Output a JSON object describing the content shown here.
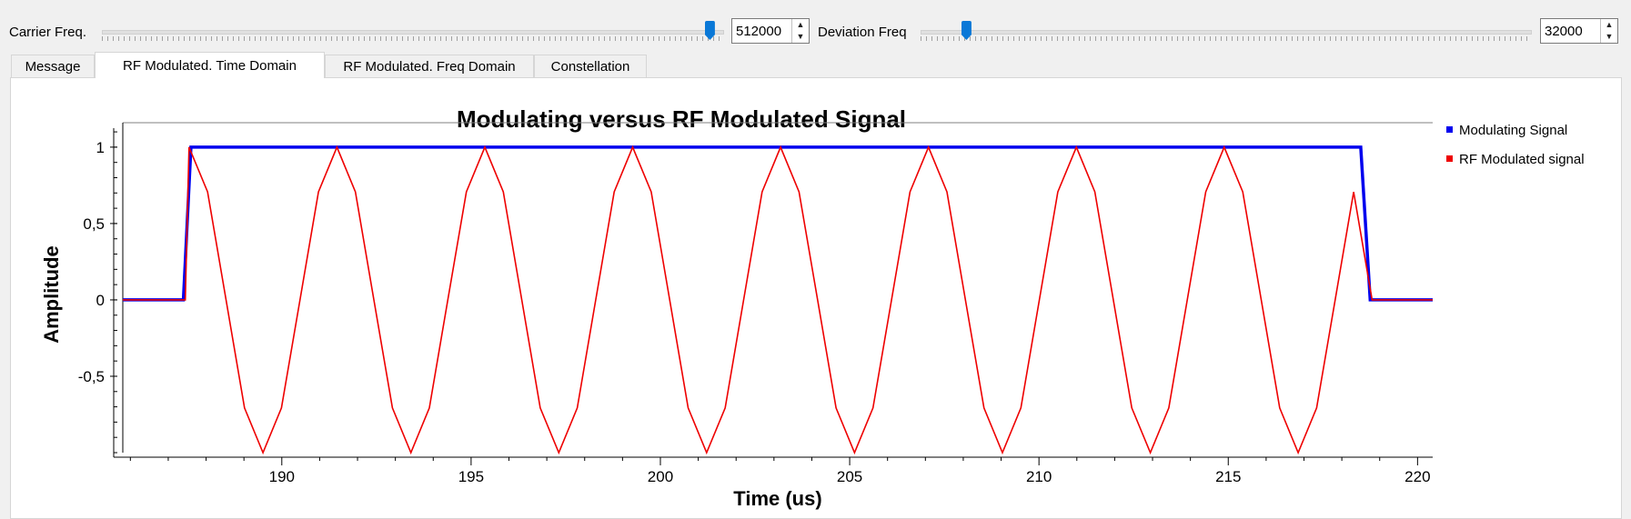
{
  "controls": {
    "carrier": {
      "label": "Carrier Freq.",
      "value": "512000",
      "slider_fraction": 0.985
    },
    "deviation": {
      "label": "Deviation Freq",
      "value": "32000",
      "slider_fraction": 0.068
    }
  },
  "tabs": [
    {
      "label": "Message",
      "active": false
    },
    {
      "label": "RF Modulated. Time Domain",
      "active": true
    },
    {
      "label": "RF Modulated. Freq Domain",
      "active": false
    },
    {
      "label": "Constellation",
      "active": false
    }
  ],
  "colors": {
    "modulating": "#0000ee",
    "rf": "#ee0000",
    "slider_handle": "#0a78d7"
  },
  "chart_data": {
    "type": "line",
    "title": "Modulating versus RF Modulated Signal",
    "xlabel": "Time (us)",
    "ylabel": "Amplitude",
    "xlim": [
      185.8,
      220.4
    ],
    "ylim": [
      -1.0,
      1.16
    ],
    "xticks": [
      190,
      195,
      200,
      205,
      210,
      215,
      220
    ],
    "yticks": [
      1,
      0.5,
      0,
      -0.5
    ],
    "ytick_labels": [
      "1",
      "0,5",
      "0",
      "-0,5"
    ],
    "legend": [
      "Modulating Signal",
      "RF Modulated signal"
    ],
    "legend_position": "right",
    "grid": false,
    "series": [
      {
        "name": "Modulating Signal",
        "color": "#0000ee",
        "x": [
          185.8,
          187.4,
          187.6,
          218.5,
          218.75,
          220.4
        ],
        "y": [
          0,
          0,
          1,
          1,
          0,
          0
        ]
      },
      {
        "name": "RF Modulated signal",
        "color": "#ee0000",
        "sample_period_us": 0.48828125,
        "pulse_start_us": 187.55,
        "pulse_end_us": 218.8,
        "samples": [
          1,
          0.7071,
          0,
          -0.7071,
          -1,
          -0.7071,
          0,
          0.7071
        ]
      }
    ]
  }
}
